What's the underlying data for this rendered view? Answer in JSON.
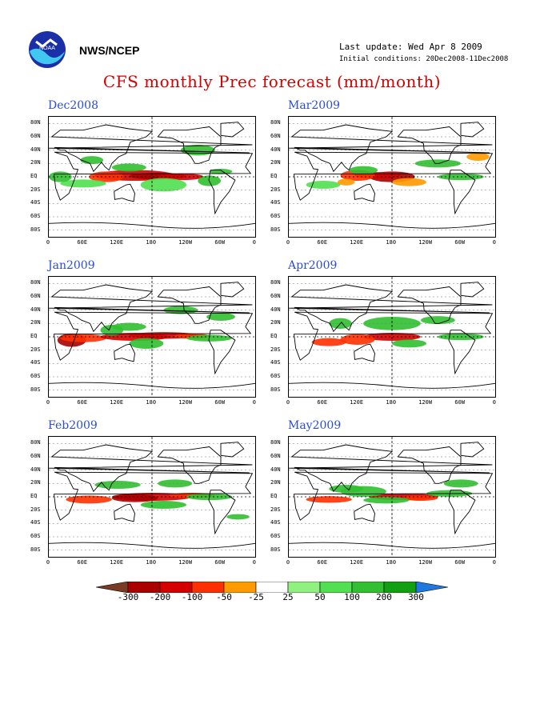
{
  "header": {
    "agency": "NWS/NCEP",
    "last_update": "Last update: Wed Apr 8 2009",
    "initial_conditions": "Initial conditions: 20Dec2008-11Dec2008",
    "title": "CFS monthly Prec forecast (mm/month)"
  },
  "panels": [
    {
      "label": "Dec2008"
    },
    {
      "label": "Mar2009"
    },
    {
      "label": "Jan2009"
    },
    {
      "label": "Apr2009"
    },
    {
      "label": "Feb2009"
    },
    {
      "label": "May2009"
    }
  ],
  "axes": {
    "lat_labels": [
      "80N",
      "60N",
      "40N",
      "20N",
      "EQ",
      "20S",
      "40S",
      "60S",
      "80S"
    ],
    "lon_labels": [
      "0",
      "60E",
      "120E",
      "180",
      "120W",
      "60W",
      "0"
    ]
  },
  "colorbar": {
    "labels": [
      "-300",
      "-200",
      "-100",
      "-50",
      "-25",
      "25",
      "50",
      "100",
      "200",
      "300"
    ],
    "colors": [
      "#7a3a24",
      "#aa0000",
      "#d40000",
      "#ff3000",
      "#ff9a00",
      "#ffffff",
      "#90f080",
      "#50e050",
      "#30c030",
      "#10a010",
      "#1e78e0"
    ]
  },
  "colors": {
    "title": "#d40000",
    "panel_title": "#2a4cd8"
  }
}
